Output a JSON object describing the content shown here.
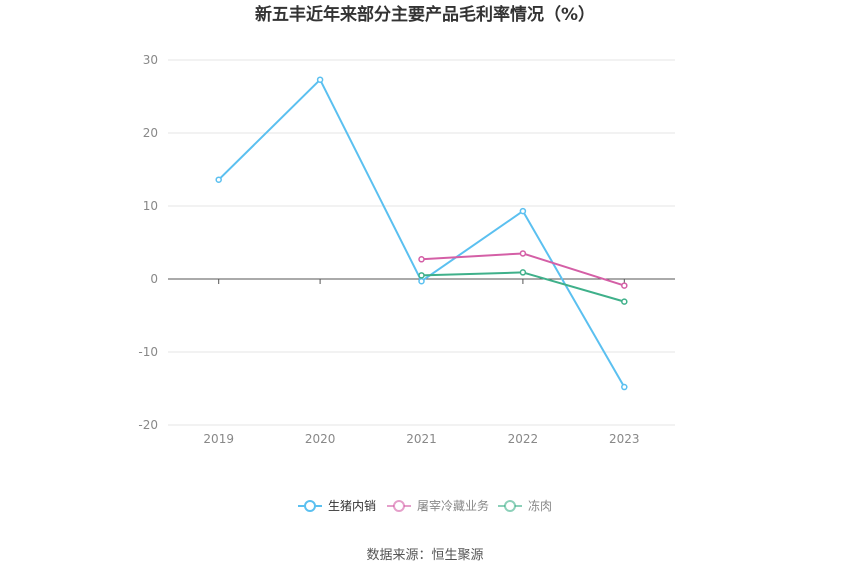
{
  "chart_data": {
    "type": "line",
    "title": "新五丰近年来部分主要产品毛利率情况（%）",
    "xlabel": "",
    "ylabel": "",
    "categories": [
      "2019",
      "2020",
      "2021",
      "2022",
      "2023"
    ],
    "ylim": [
      -20,
      30
    ],
    "yticks": [
      "30",
      "20",
      "10",
      "0",
      "-10",
      "-20"
    ],
    "ytick_values": [
      30,
      20,
      10,
      0,
      -10,
      -20
    ],
    "grid": true,
    "legend": "bottom-center",
    "series": [
      {
        "name": "生猪内销",
        "color": "#5bc0f0",
        "values": [
          13.6,
          27.3,
          -0.3,
          9.3,
          -14.8
        ]
      },
      {
        "name": "屠宰冷藏业务",
        "color": "#d45fa6",
        "values": [
          null,
          null,
          2.7,
          3.5,
          -0.9
        ]
      },
      {
        "name": "冻肉",
        "color": "#3fb08a",
        "values": [
          null,
          null,
          0.5,
          0.9,
          -3.1
        ]
      }
    ]
  },
  "source_text": "数据来源：恒生聚源"
}
